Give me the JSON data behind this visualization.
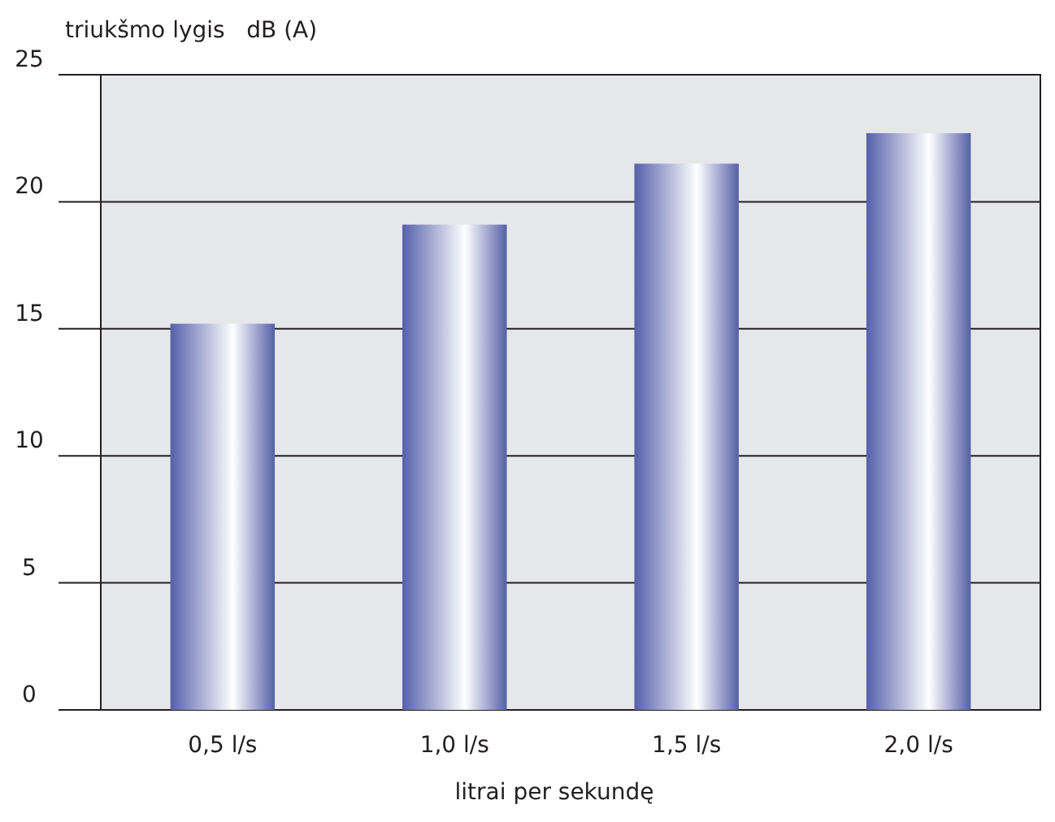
{
  "chart_data": {
    "type": "bar",
    "ylabel": "triukšmo lygis   dB (A)",
    "xlabel": "litrai per sekundę",
    "categories": [
      "0,5 l/s",
      "1,0 l/s",
      "1,5 l/s",
      "2,0 l/s"
    ],
    "values": [
      15.2,
      19.1,
      21.5,
      22.7
    ],
    "color": "#5560a8",
    "ylim": [
      0,
      25
    ],
    "yticks": [
      0,
      5,
      10,
      15,
      20,
      25
    ],
    "grid": "y"
  }
}
